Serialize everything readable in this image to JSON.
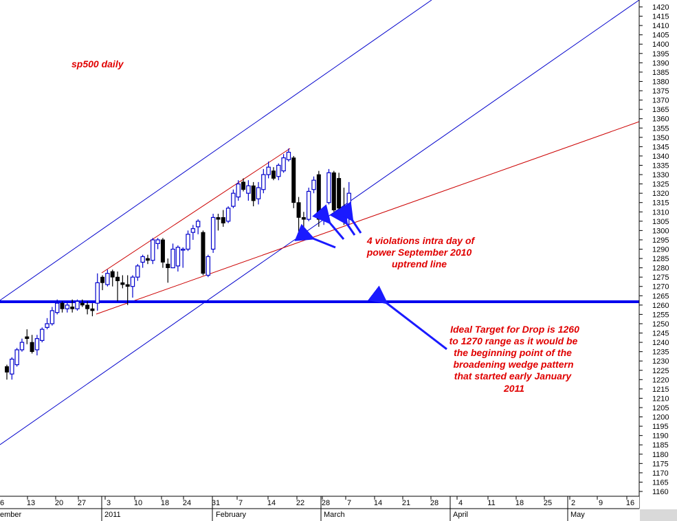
{
  "chart_data": {
    "type": "candlestick",
    "title": "sp500 daily",
    "xlabel": "",
    "ylabel": "",
    "ylim": [
      1155,
      1425
    ],
    "y_tick_step": 5,
    "grid": false,
    "day_tick_labels": [
      "6",
      "13",
      "20",
      "27",
      "3",
      "10",
      "18",
      "24",
      "31",
      "7",
      "14",
      "22",
      "28",
      "7",
      "14",
      "21",
      "28",
      "4",
      "11",
      "18",
      "25",
      "2",
      "9",
      "16"
    ],
    "month_labels": [
      "ember",
      "2011",
      "February",
      "March",
      "April",
      "May"
    ],
    "series": [
      {
        "columns": [
          "open",
          "high",
          "low",
          "close"
        ],
        "candles": [
          [
            1227,
            1228,
            1220,
            1224
          ],
          [
            1223,
            1232,
            1220,
            1231
          ],
          [
            1228,
            1237,
            1227,
            1236
          ],
          [
            1236,
            1242,
            1235,
            1240
          ],
          [
            1243,
            1247,
            1239,
            1242
          ],
          [
            1240,
            1244,
            1234,
            1235
          ],
          [
            1236,
            1244,
            1233,
            1242
          ],
          [
            1241,
            1248,
            1240,
            1247
          ],
          [
            1248,
            1253,
            1247,
            1250
          ],
          [
            1250,
            1259,
            1249,
            1257
          ],
          [
            1256,
            1263,
            1255,
            1261
          ],
          [
            1261,
            1262,
            1256,
            1258
          ],
          [
            1258,
            1262,
            1256,
            1260
          ],
          [
            1259,
            1263,
            1256,
            1258
          ],
          [
            1258,
            1263,
            1257,
            1262
          ],
          [
            1261,
            1263,
            1259,
            1260
          ],
          [
            1260,
            1262,
            1255,
            1258
          ],
          [
            1258,
            1261,
            1254,
            1257
          ],
          [
            1261,
            1277,
            1257,
            1272
          ],
          [
            1275,
            1276,
            1268,
            1272
          ],
          [
            1271,
            1279,
            1270,
            1277
          ],
          [
            1278,
            1279,
            1270,
            1275
          ],
          [
            1275,
            1278,
            1262,
            1273
          ],
          [
            1272,
            1276,
            1269,
            1271
          ],
          [
            1271,
            1276,
            1260,
            1270
          ],
          [
            1270,
            1276,
            1264,
            1275
          ],
          [
            1275,
            1282,
            1273,
            1281
          ],
          [
            1283,
            1287,
            1280,
            1286
          ],
          [
            1285,
            1287,
            1282,
            1284
          ],
          [
            1284,
            1296,
            1282,
            1295
          ],
          [
            1293,
            1296,
            1290,
            1295
          ],
          [
            1295,
            1296,
            1280,
            1283
          ],
          [
            1282,
            1285,
            1272,
            1280
          ],
          [
            1280,
            1293,
            1280,
            1290
          ],
          [
            1281,
            1292,
            1278,
            1291
          ],
          [
            1290,
            1291,
            1280,
            1290
          ],
          [
            1290,
            1300,
            1289,
            1298
          ],
          [
            1299,
            1303,
            1295,
            1301
          ],
          [
            1302,
            1306,
            1298,
            1305
          ],
          [
            1299,
            1300,
            1276,
            1277
          ],
          [
            1276,
            1287,
            1275,
            1286
          ],
          [
            1290,
            1309,
            1288,
            1307
          ],
          [
            1307,
            1309,
            1300,
            1306
          ],
          [
            1307,
            1311,
            1302,
            1304
          ],
          [
            1305,
            1313,
            1304,
            1312
          ],
          [
            1313,
            1322,
            1312,
            1320
          ],
          [
            1318,
            1327,
            1316,
            1325
          ],
          [
            1326,
            1328,
            1321,
            1322
          ],
          [
            1320,
            1327,
            1316,
            1324
          ],
          [
            1324,
            1326,
            1313,
            1316
          ],
          [
            1317,
            1326,
            1314,
            1323
          ],
          [
            1322,
            1333,
            1320,
            1330
          ],
          [
            1330,
            1337,
            1328,
            1334
          ],
          [
            1332,
            1334,
            1327,
            1328
          ],
          [
            1329,
            1336,
            1327,
            1335
          ],
          [
            1332,
            1341,
            1331,
            1339
          ],
          [
            1338,
            1344,
            1337,
            1342
          ],
          [
            1339,
            1340,
            1312,
            1315
          ],
          [
            1315,
            1318,
            1298,
            1307
          ],
          [
            1307,
            1310,
            1295,
            1306
          ],
          [
            1306,
            1323,
            1305,
            1321
          ],
          [
            1322,
            1329,
            1320,
            1327
          ],
          [
            1330,
            1332,
            1302,
            1306
          ],
          [
            1306,
            1310,
            1303,
            1308
          ],
          [
            1315,
            1333,
            1314,
            1331
          ],
          [
            1331,
            1332,
            1310,
            1311
          ],
          [
            1328,
            1331,
            1310,
            1312
          ],
          [
            1312,
            1323,
            1303,
            1305
          ],
          [
            1309,
            1326,
            1303,
            1320
          ]
        ]
      }
    ],
    "annotations": [
      "4 violations intra day of",
      "power September 2010",
      "uptrend line",
      "Ideal Target for Drop is 1260",
      "to 1270 range as it would be",
      "the beginning point of the",
      "broadening wedge pattern",
      "that started early January",
      "2011"
    ],
    "colors": {
      "up_candle": "#0000cc",
      "down_candle": "#000000",
      "channel_lines": "#0000cc",
      "wedge_lines": "#cc0000",
      "target_line": "#0000ee",
      "annotation_text": "#e00000",
      "arrows": "#1a1aff"
    }
  }
}
